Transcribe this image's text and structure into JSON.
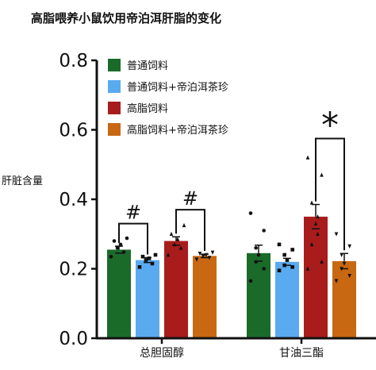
{
  "colors": {
    "axis": "#111111",
    "errorbar": "#111111",
    "points": "#111111"
  },
  "chart_data": {
    "type": "bar",
    "title": "高脂喂养小鼠饮用帝泊洱肝脂的变化",
    "xlabel": "",
    "ylabel": "肝脏含量",
    "ylim": [
      0,
      0.8
    ],
    "yticks": [
      "0.0",
      "0.2",
      "0.4",
      "0.6",
      "0.8"
    ],
    "grid": false,
    "legend_position": "top-left",
    "categories": [
      "总胆固醇",
      "甘油三酯"
    ],
    "series": [
      {
        "name": "普通饲料",
        "color": "#1a6b2a",
        "values": [
          0.255,
          0.245
        ],
        "errors": [
          0.01,
          0.023
        ],
        "points": [
          [
            0.235,
            0.248,
            0.26,
            0.27,
            0.28,
            0.288
          ],
          [
            0.165,
            0.2,
            0.22,
            0.24,
            0.26,
            0.31,
            0.36
          ]
        ],
        "marker": "circle"
      },
      {
        "name": "普通饲料+帝泊洱茶珍",
        "color": "#5aaaf0",
        "values": [
          0.225,
          0.22
        ],
        "errors": [
          0.007,
          0.01
        ],
        "points": [
          [
            0.205,
            0.215,
            0.225,
            0.23,
            0.235,
            0.24
          ],
          [
            0.195,
            0.205,
            0.21,
            0.225,
            0.24,
            0.255,
            0.27
          ]
        ],
        "marker": "square"
      },
      {
        "name": "高脂饲料",
        "color": "#a81c1c",
        "values": [
          0.28,
          0.35
        ],
        "errors": [
          0.012,
          0.035
        ],
        "points": [
          [
            0.24,
            0.26,
            0.27,
            0.285,
            0.3,
            0.325
          ],
          [
            0.2,
            0.22,
            0.27,
            0.3,
            0.33,
            0.35,
            0.39,
            0.47,
            0.52
          ]
        ],
        "marker": "triangle"
      },
      {
        "name": "高脂饲料+帝泊洱茶珍",
        "color": "#c86812",
        "values": [
          0.237,
          0.222
        ],
        "errors": [
          0.005,
          0.022
        ],
        "points": [
          [
            0.227,
            0.232,
            0.237,
            0.24,
            0.244,
            0.247
          ],
          [
            0.165,
            0.18,
            0.2,
            0.215,
            0.24,
            0.265,
            0.3
          ]
        ],
        "marker": "triangle-down"
      }
    ],
    "significance": [
      {
        "label": "#",
        "category": 0,
        "from_series": 0,
        "to_series": 1,
        "level": 0.33
      },
      {
        "label": "#",
        "category": 0,
        "from_series": 2,
        "to_series": 3,
        "level": 0.37
      },
      {
        "label": "*",
        "category": 1,
        "from_series": 2,
        "to_series": 3,
        "level": 0.575
      }
    ]
  }
}
